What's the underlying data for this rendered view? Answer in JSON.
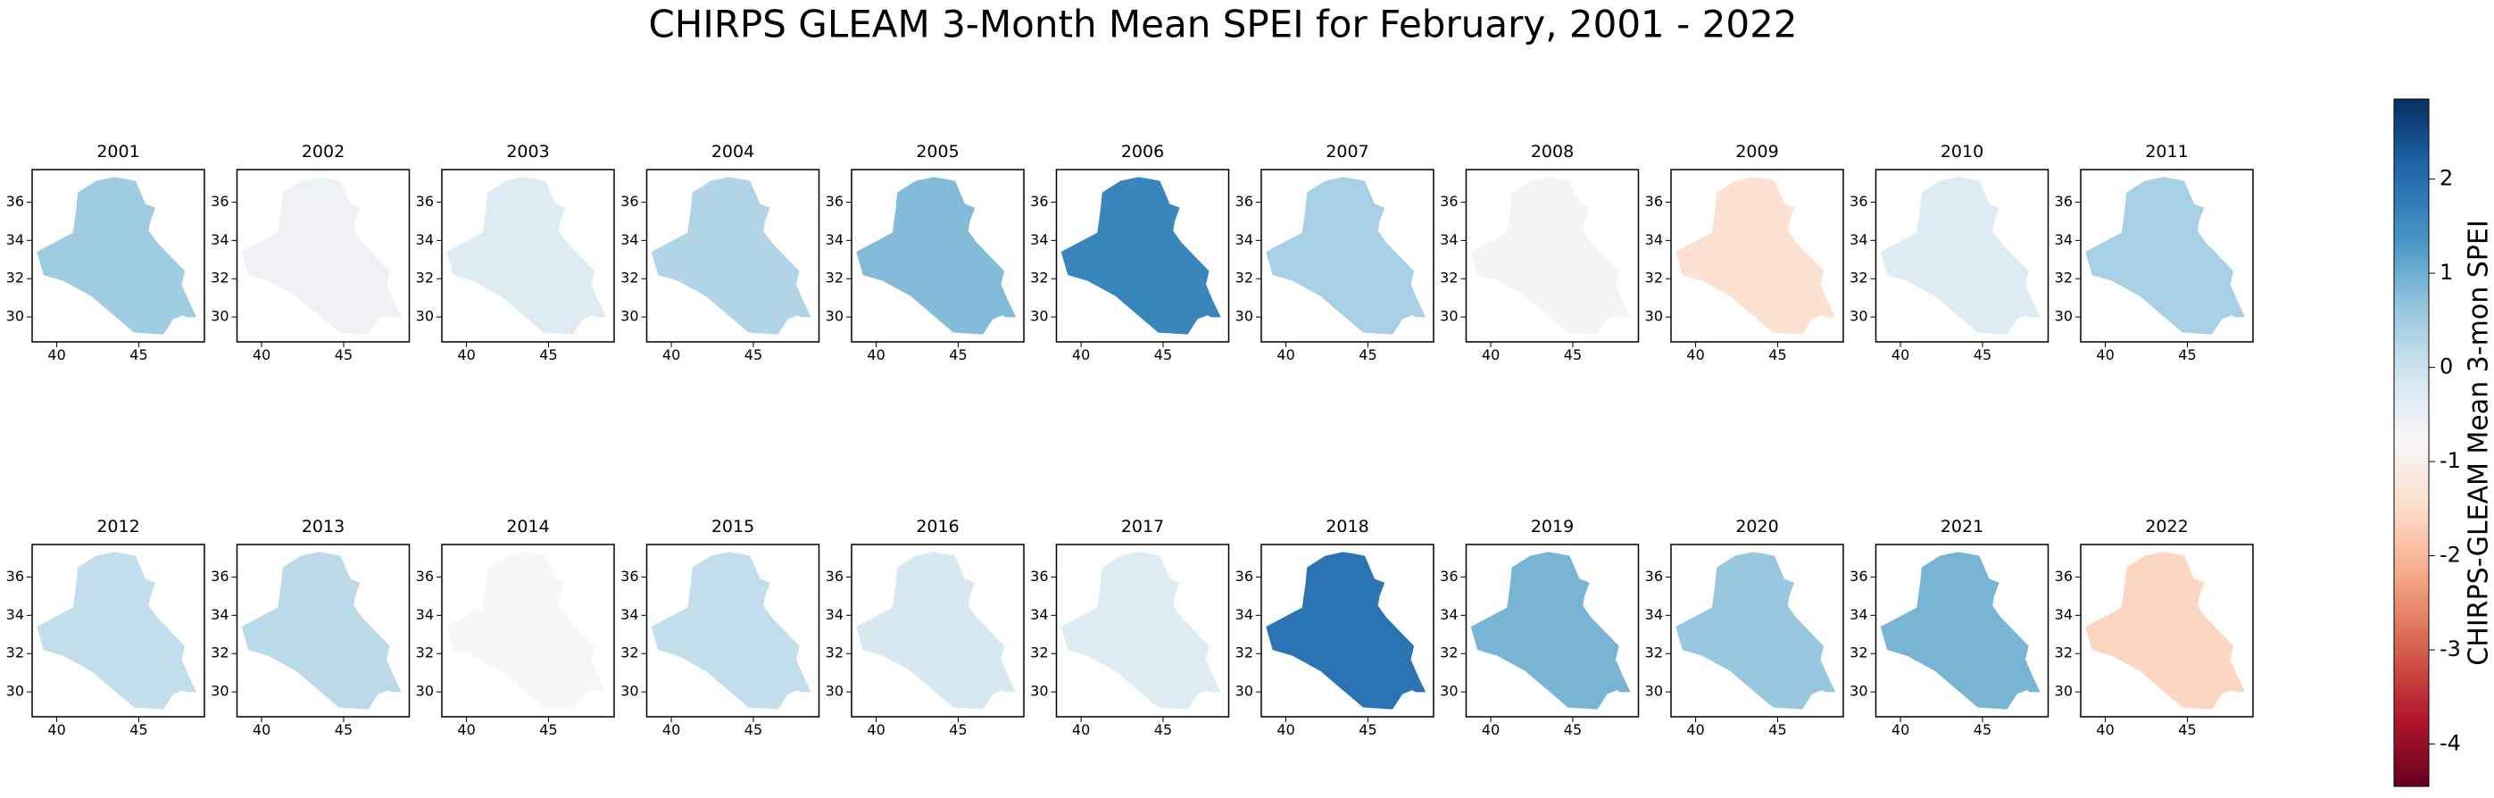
{
  "chart_data": {
    "type": "choropleth",
    "title": "CHIRPS GLEAM 3-Month Mean SPEI for February, 2001 - 2022",
    "colorbar_label": "CHIRPS-GLEAM Mean 3-mon SPEI",
    "colormap": "RdBu",
    "clim": [
      -4.45,
      2.85
    ],
    "cticks": [
      -4,
      -3,
      -2,
      -1,
      0,
      1,
      2
    ],
    "xlim": [
      38.5,
      49
    ],
    "ylim": [
      28.7,
      37.7
    ],
    "xticks": [
      40,
      45
    ],
    "yticks": [
      30,
      32,
      34,
      36
    ],
    "categories": [
      "2001",
      "2002",
      "2003",
      "2004",
      "2005",
      "2006",
      "2007",
      "2008",
      "2009",
      "2010",
      "2011",
      "2012",
      "2013",
      "2014",
      "2015",
      "2016",
      "2017",
      "2018",
      "2019",
      "2020",
      "2021",
      "2022"
    ],
    "values": [
      0.5,
      -0.6,
      -0.3,
      0.3,
      0.8,
      1.6,
      0.4,
      -0.7,
      -1.4,
      -0.3,
      0.4,
      0.1,
      0.2,
      -0.8,
      0.1,
      -0.2,
      -0.3,
      1.9,
      0.9,
      0.6,
      0.9,
      -1.6
    ]
  }
}
